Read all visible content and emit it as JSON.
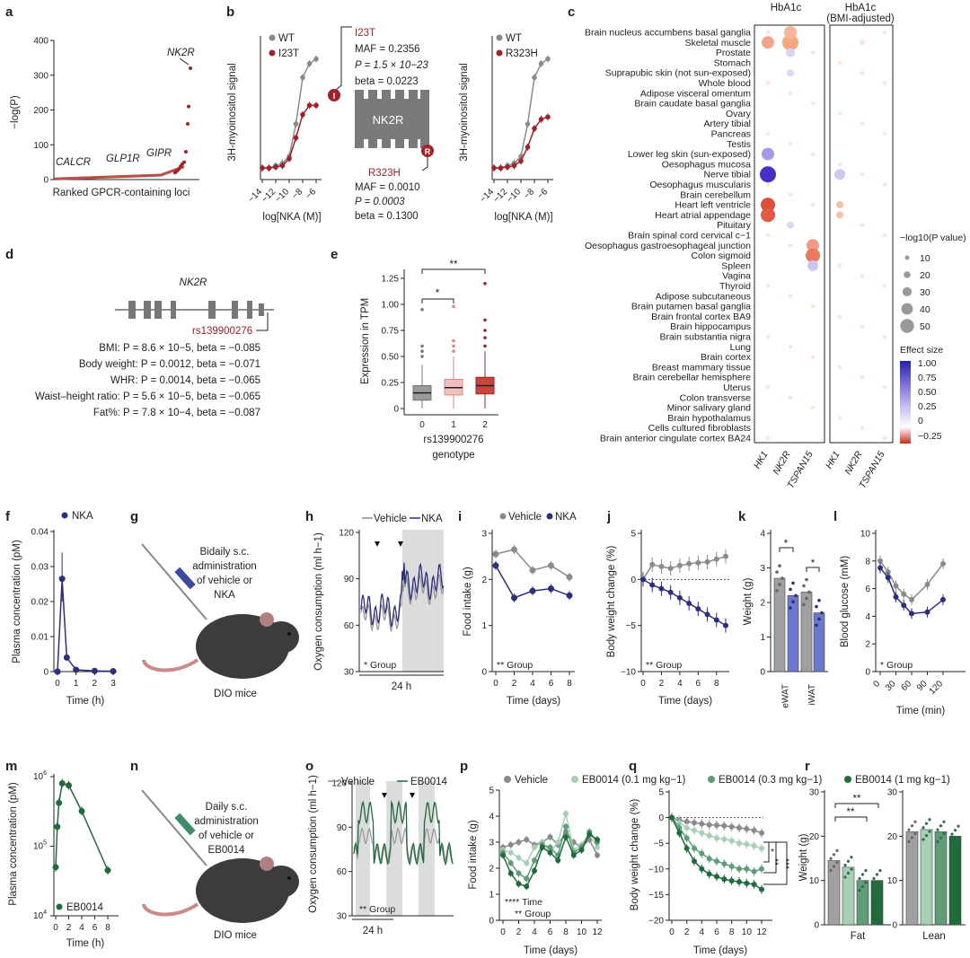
{
  "panels": {
    "a": {
      "label": "a",
      "ylabel": "−log(P)",
      "xlabel": "Ranked GPCR-containing loci",
      "yticks": [
        "0",
        "100",
        "200",
        "300",
        "400"
      ],
      "annotations": [
        "NK2R",
        "CALCR",
        "GLP1R",
        "GIPR"
      ]
    },
    "b": {
      "label": "b",
      "ylabel": "3H-myoinositol signal",
      "xlabel": "log[NKA (M)]",
      "xticks": [
        "−14",
        "−12",
        "−10",
        "−8",
        "−6"
      ],
      "legend_left": [
        "WT",
        "I23T"
      ],
      "legend_right": [
        "WT",
        "R323H"
      ],
      "i23t_box": [
        "I23T",
        "MAF = 0.2356",
        "P = 1.5 × 10−23",
        "beta = 0.0223"
      ],
      "r323h_box": [
        "R323H",
        "MAF = 0.0010",
        "P = 0.0003",
        "beta = 0.1300"
      ],
      "receptor": "NK2R",
      "marker_top": "I",
      "marker_bottom": "R"
    },
    "c": {
      "label": "c",
      "header1": "HbA1c",
      "header2": "HbA1c",
      "header2b": "(BMI-adjusted)",
      "tissues": [
        "Brain nucleus accumbens basal ganglia",
        "Skeletal muscle",
        "Prostate",
        "Stomach",
        "Suprapubic skin (not sun-exposed)",
        "Whole blood",
        "Adipose visceral omentum",
        "Brain caudate basal ganglia",
        "Ovary",
        "Artery tibial",
        "Pancreas",
        "Testis",
        "Lower leg skin (sun-exposed)",
        "Oesophagus mucosa",
        "Nerve tibial",
        "Oesophagus muscularis",
        "Brain cerebellum",
        "Heart left ventricle",
        "Heart atrial appendage",
        "Pituitary",
        "Brain spinal cord cervical c−1",
        "Oesophagus gastroesophageal junction",
        "Colon sigmoid",
        "Spleen",
        "Vagina",
        "Thyroid",
        "Adipose subcutaneous",
        "Brain putamen basal ganglia",
        "Brain frontal cortex BA9",
        "Brain hippocampus",
        "Brain substantia nigra",
        "Lung",
        "Brain cortex",
        "Breast mammary tissue",
        "Brain cerebellar hemisphere",
        "Uterus",
        "Colon transverse",
        "Minor salivary gland",
        "Brain hypothalamus",
        "Cells cultured fibroblasts",
        "Brain anterior cingulate cortex BA24"
      ],
      "genes": [
        "HK1",
        "NK2R",
        "TSPAN15"
      ],
      "size_legend_title": "−log10(P value)",
      "size_legend": [
        "10",
        "20",
        "30",
        "40",
        "50"
      ],
      "color_legend_title": "Effect size",
      "color_legend": [
        "1.00",
        "0.75",
        "0.50",
        "0.25",
        "0",
        "−0.25"
      ]
    },
    "d": {
      "label": "d",
      "gene": "NK2R",
      "snp": "rs139900276",
      "lines": [
        "BMI: P = 8.6 × 10−5, beta = −0.085",
        "Body weight: P = 0.0012, beta = −0.071",
        "WHR: P = 0.0014, beta = −0.065",
        "Waist–height ratio: P = 5.6 × 10−5, beta = −0.065",
        "Fat%: P = 7.8 × 10−4, beta = −0.087"
      ]
    },
    "e": {
      "label": "e",
      "ylabel": "Expression in TPM",
      "xlabel1": "rs139900276",
      "xlabel2": "genotype",
      "xticks": [
        "0",
        "1",
        "2"
      ],
      "yticks": [
        "0",
        "0.25",
        "0.50",
        "0.75",
        "1.00",
        "1.25"
      ],
      "sig1": "*",
      "sig2": "**"
    },
    "f": {
      "label": "f",
      "ylabel": "Plasma concentration (pM)",
      "xlabel": "Time (h)",
      "legend": "NKA",
      "yticks": [
        "0",
        "0.01",
        "0.02",
        "0.03",
        "0.04"
      ],
      "xticks": [
        "0",
        "1",
        "2",
        "3"
      ]
    },
    "g": {
      "label": "g",
      "text": [
        "Bidaily s.c.",
        "administration",
        "of vehicle or",
        "NKA"
      ],
      "mice": "DIO mice"
    },
    "h": {
      "label": "h",
      "ylabel": "Oxygen consumption (ml h−1)",
      "legend": [
        "Vehicle",
        "NKA"
      ],
      "yticks": [
        "30",
        "60",
        "90",
        "120"
      ],
      "stat": "* Group",
      "bar": "24 h"
    },
    "i": {
      "label": "i",
      "ylabel": "Food intake (g)",
      "xlabel": "Time (days)",
      "legend": [
        "Vehicle",
        "NKA"
      ],
      "yticks": [
        "0",
        "1",
        "2",
        "3"
      ],
      "xticks": [
        "0",
        "2",
        "4",
        "6",
        "8"
      ],
      "stat": "** Group"
    },
    "j": {
      "label": "j",
      "ylabel": "Body weight change (%)",
      "xlabel": "Time (days)",
      "yticks": [
        "−10",
        "−5",
        "0",
        "5"
      ],
      "xticks": [
        "0",
        "2",
        "4",
        "6",
        "8"
      ],
      "stat": "** Group"
    },
    "k": {
      "label": "k",
      "ylabel": "Weight (g)",
      "xticks": [
        "eWAT",
        "iWAT"
      ],
      "yticks": [
        "0",
        "1",
        "2",
        "3",
        "4"
      ],
      "sig": "*"
    },
    "l": {
      "label": "l",
      "ylabel": "Blood glucose (mM)",
      "xlabel": "Time (min)",
      "yticks": [
        "0",
        "2",
        "4",
        "6",
        "8",
        "10"
      ],
      "xticks": [
        "0",
        "30",
        "60",
        "90",
        "120"
      ],
      "stat": "* Group"
    },
    "m": {
      "label": "m",
      "ylabel": "Plasma concentration (pM)",
      "xlabel": "Time (h)",
      "legend": "EB0014",
      "yticks": [
        "10^4",
        "10^5",
        "10^6"
      ],
      "xticks": [
        "0",
        "2",
        "4",
        "6",
        "8"
      ]
    },
    "n": {
      "label": "n",
      "text": [
        "Daily s.c.",
        "administration",
        "of vehicle or",
        "EB0014"
      ],
      "mice": "DIO mice"
    },
    "o": {
      "label": "o",
      "ylabel": "Oxygen consumption (ml h−1)",
      "legend": [
        "Vehicle",
        "EB0014"
      ],
      "yticks": [
        "30",
        "60",
        "90",
        "120"
      ],
      "stat": "** Group",
      "bar": "24 h"
    },
    "p": {
      "label": "p",
      "ylabel": "Food intake (g)",
      "xlabel": "Time (days)",
      "yticks": [
        "0",
        "1",
        "2",
        "3",
        "4",
        "5"
      ],
      "xticks": [
        "0",
        "2",
        "4",
        "6",
        "8",
        "10",
        "12"
      ],
      "stat1": "**** Time",
      "stat2": "** Group"
    },
    "pq_legend": [
      "Vehicle",
      "EB0014 (0.1 mg kg−1)",
      "EB0014 (0.3 mg kg−1)",
      "EB0014 (1 mg kg−1)"
    ],
    "q": {
      "label": "q",
      "ylabel": "Body weight change (%)",
      "xlabel": "Time (days)",
      "yticks": [
        "−20",
        "−15",
        "−10",
        "−5",
        "0",
        "5"
      ],
      "xticks": [
        "0",
        "2",
        "4",
        "6",
        "8",
        "10",
        "12"
      ],
      "sig": [
        "*",
        "**",
        "***"
      ]
    },
    "r": {
      "label": "r",
      "ylabel": "Weight (g)",
      "yticks": [
        "0",
        "10",
        "20",
        "30"
      ],
      "groups": [
        "Fat",
        "Lean"
      ],
      "sig": [
        "**",
        "**"
      ]
    }
  },
  "chart_data": [
    {
      "type": "scatter",
      "panel": "a",
      "note": "ranked loci",
      "x": [
        1,
        2,
        3,
        4,
        5,
        6,
        7,
        8,
        9,
        10
      ],
      "y": [
        320,
        210,
        160,
        80,
        50,
        45,
        38,
        30,
        25,
        20
      ]
    },
    {
      "type": "line",
      "panel": "b-left",
      "x": [
        -14,
        -13,
        -12,
        -11,
        -10,
        -9,
        -8,
        -7,
        -6
      ],
      "series": [
        {
          "name": "WT",
          "values": [
            0.25,
            0.25,
            0.3,
            0.35,
            0.5,
            1.2,
            2.2,
            2.5,
            2.6
          ]
        },
        {
          "name": "I23T",
          "values": [
            0.25,
            0.25,
            0.27,
            0.3,
            0.45,
            0.9,
            1.4,
            1.6,
            1.6
          ]
        }
      ]
    },
    {
      "type": "line",
      "panel": "b-right",
      "x": [
        -14,
        -13,
        -12,
        -11,
        -10,
        -9,
        -8,
        -7,
        -6
      ],
      "series": [
        {
          "name": "WT",
          "values": [
            0.25,
            0.25,
            0.3,
            0.35,
            0.5,
            1.2,
            2.2,
            2.5,
            2.6
          ]
        },
        {
          "name": "R323H",
          "values": [
            0.25,
            0.25,
            0.27,
            0.3,
            0.4,
            0.7,
            1.1,
            1.3,
            1.35
          ]
        }
      ]
    },
    {
      "type": "line",
      "panel": "f",
      "x": [
        0,
        0.25,
        0.5,
        1,
        2,
        3
      ],
      "series": [
        {
          "name": "NKA",
          "values": [
            0,
            0.0265,
            0.004,
            0.0005,
            0.0002,
            0.0001
          ]
        }
      ]
    },
    {
      "type": "line",
      "panel": "i",
      "x": [
        0,
        2,
        4,
        6,
        8
      ],
      "series": [
        {
          "name": "Vehicle",
          "values": [
            2.55,
            2.65,
            2.2,
            2.3,
            2.05
          ]
        },
        {
          "name": "NKA",
          "values": [
            2.3,
            1.6,
            1.75,
            1.8,
            1.65
          ]
        }
      ]
    },
    {
      "type": "line",
      "panel": "j",
      "x": [
        0,
        1,
        2,
        3,
        4,
        5,
        6,
        7,
        8,
        9
      ],
      "series": [
        {
          "name": "Vehicle",
          "values": [
            0,
            1.6,
            1.4,
            1.2,
            1.5,
            1.7,
            1.8,
            1.9,
            2.2,
            2.5
          ]
        },
        {
          "name": "NKA",
          "values": [
            0,
            -0.6,
            -1,
            -1.4,
            -2,
            -2.6,
            -3.2,
            -3.8,
            -4.4,
            -5
          ]
        }
      ]
    },
    {
      "type": "bar",
      "panel": "k",
      "categories": [
        "eWAT",
        "iWAT"
      ],
      "series": [
        {
          "name": "Vehicle",
          "values": [
            2.7,
            2.3
          ]
        },
        {
          "name": "NKA",
          "values": [
            2.2,
            1.7
          ]
        }
      ]
    },
    {
      "type": "line",
      "panel": "l",
      "x": [
        0,
        15,
        30,
        45,
        60,
        90,
        120
      ],
      "series": [
        {
          "name": "Vehicle",
          "values": [
            8,
            7.2,
            6.2,
            5.6,
            5.2,
            6.3,
            7.8
          ]
        },
        {
          "name": "NKA",
          "values": [
            7.5,
            6.8,
            5.4,
            4.8,
            4.2,
            4.3,
            5.2
          ]
        }
      ]
    },
    {
      "type": "line",
      "panel": "m",
      "x": [
        0,
        0.25,
        0.5,
        1,
        2,
        4,
        8
      ],
      "series": [
        {
          "name": "EB0014",
          "values": [
            50000,
            190000,
            420000,
            800000,
            750000,
            320000,
            45000
          ]
        }
      ]
    },
    {
      "type": "line",
      "panel": "q",
      "x": [
        0,
        1,
        2,
        3,
        4,
        5,
        6,
        7,
        8,
        9,
        10,
        11,
        12
      ],
      "series": [
        {
          "name": "Vehicle",
          "values": [
            0,
            -0.5,
            -0.8,
            -1,
            -1.2,
            -1.4,
            -1.5,
            -1.6,
            -1.8,
            -2,
            -2.2,
            -2.5,
            -3
          ]
        },
        {
          "name": "EB0014 (0.1 mg kg−1)",
          "values": [
            0,
            -1,
            -2,
            -2.5,
            -3,
            -3.5,
            -4,
            -4.2,
            -4.5,
            -5,
            -5.2,
            -5.5,
            -6
          ]
        },
        {
          "name": "EB0014 (0.3 mg kg−1)",
          "values": [
            0,
            -2,
            -4,
            -6,
            -7,
            -8,
            -8.5,
            -9,
            -9.5,
            -10,
            -10,
            -10.5,
            -10
          ]
        },
        {
          "name": "EB0014 (1 mg kg−1)",
          "values": [
            0,
            -3,
            -6,
            -8.5,
            -10,
            -11,
            -11.5,
            -12,
            -12.3,
            -12.5,
            -12.8,
            -13,
            -14
          ]
        }
      ]
    },
    {
      "type": "bar",
      "panel": "r",
      "categories": [
        "Fat",
        "Lean"
      ],
      "series": [
        {
          "name": "Vehicle",
          "values": [
            14.5,
            21
          ]
        },
        {
          "name": "EB0014 (0.1 mg kg−1)",
          "values": [
            13,
            21.5
          ]
        },
        {
          "name": "EB0014 (0.3 mg kg−1)",
          "values": [
            10,
            21
          ]
        },
        {
          "name": "EB0014 (1 mg kg−1)",
          "values": [
            10,
            20
          ]
        }
      ]
    }
  ]
}
